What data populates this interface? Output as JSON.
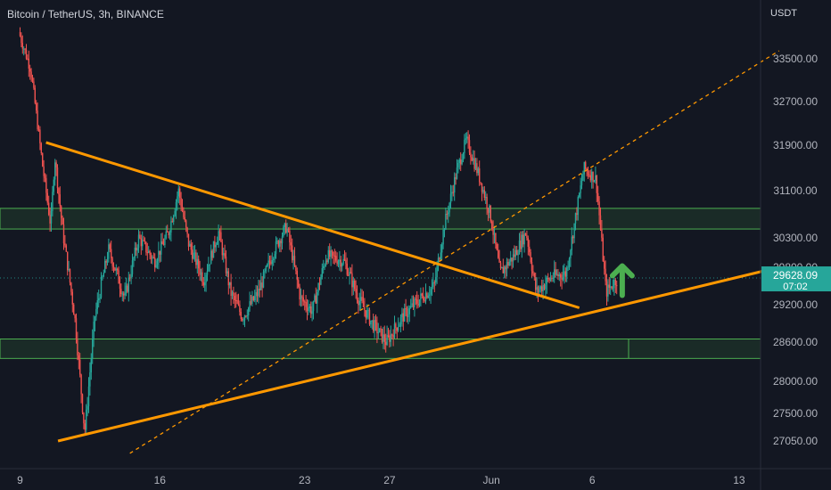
{
  "header": {
    "symbol_line": "Bitcoin / TetherUS, 3h, BINANCE"
  },
  "axis": {
    "unit": "USDT"
  },
  "colors": {
    "bg": "#131722",
    "up": "#26a69a",
    "down": "#ef5350",
    "trend": "#ff9800",
    "zone": "#4caf50",
    "arrow": "#4caf50",
    "label_bg": "#26a69a"
  },
  "chart_data": {
    "type": "candlestick",
    "x_tick_labels": [
      "9",
      "16",
      "23",
      "27",
      "Jun",
      "6",
      "13"
    ],
    "y_tick_labels": [
      "33500.00",
      "32700.00",
      "31900.00",
      "31100.00",
      "30300.00",
      "29800.00",
      "29200.00",
      "28600.00",
      "28000.00",
      "27500.00",
      "27050.00"
    ],
    "last_price": {
      "value": "29628.09",
      "countdown": "07:02"
    },
    "price_path": [
      [
        0,
        34000
      ],
      [
        1.2,
        33300
      ],
      [
        2.4,
        31500
      ],
      [
        3.2,
        30500
      ],
      [
        3.6,
        31700
      ],
      [
        4.4,
        30400
      ],
      [
        5.6,
        29000
      ],
      [
        6.6,
        27200
      ],
      [
        7.6,
        29000
      ],
      [
        9,
        30100
      ],
      [
        10.6,
        29300
      ],
      [
        12,
        30300
      ],
      [
        13.6,
        29900
      ],
      [
        15,
        30400
      ],
      [
        16,
        31100
      ],
      [
        17,
        30200
      ],
      [
        18.5,
        29600
      ],
      [
        20,
        30400
      ],
      [
        21.2,
        29400
      ],
      [
        22.4,
        29000
      ],
      [
        24,
        29400
      ],
      [
        25.6,
        30100
      ],
      [
        26.8,
        30500
      ],
      [
        28.2,
        29300
      ],
      [
        29.4,
        29100
      ],
      [
        30.8,
        30000
      ],
      [
        32.6,
        29900
      ],
      [
        34,
        29300
      ],
      [
        35.4,
        28900
      ],
      [
        36.8,
        28600
      ],
      [
        38.4,
        29000
      ],
      [
        40.2,
        29300
      ],
      [
        41.6,
        29500
      ],
      [
        42.6,
        30500
      ],
      [
        43.8,
        31400
      ],
      [
        44.8,
        32000
      ],
      [
        46,
        31400
      ],
      [
        47.2,
        30700
      ],
      [
        48.2,
        29700
      ],
      [
        49.6,
        30000
      ],
      [
        50.8,
        30400
      ],
      [
        51.8,
        29400
      ],
      [
        53.4,
        29650
      ],
      [
        54.8,
        29700
      ],
      [
        55.6,
        30500
      ],
      [
        56.6,
        31500
      ],
      [
        57.8,
        31300
      ],
      [
        58.8,
        29400
      ],
      [
        59.8,
        29600
      ]
    ],
    "trendlines": [
      {
        "name": "descending-resistance",
        "from": [
          2.6,
          31950
        ],
        "to": [
          56.0,
          29150
        ],
        "style": "solid"
      },
      {
        "name": "ascending-support",
        "from": [
          3.8,
          27050
        ],
        "to": [
          76.0,
          29800
        ],
        "style": "solid"
      },
      {
        "name": "upper-channel",
        "from": [
          11.0,
          26850
        ],
        "to": [
          76.0,
          33650
        ],
        "style": "dashed"
      }
    ],
    "zones": [
      {
        "name": "resistance-zone",
        "low": 30450,
        "high": 30800
      },
      {
        "name": "support-zone",
        "low": 28350,
        "high": 28650
      }
    ],
    "annotations": [
      {
        "type": "arrow-up",
        "at": [
          60.3,
          29350
        ]
      }
    ]
  }
}
